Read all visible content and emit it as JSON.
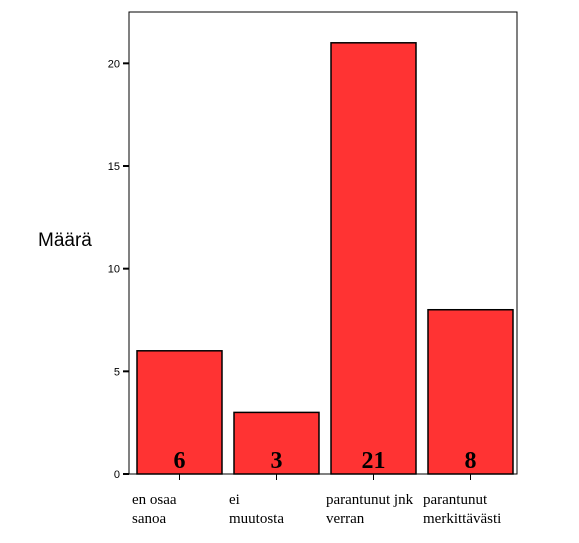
{
  "chart_data": {
    "type": "bar",
    "ylabel": "Määrä",
    "xlabel": "",
    "title": "",
    "categories": [
      [
        "en osaa",
        "sanoa"
      ],
      [
        "ei",
        "muutosta"
      ],
      [
        "parantunut jnk",
        "verran"
      ],
      [
        "parantunut",
        "merkittävästi"
      ]
    ],
    "values": [
      6,
      3,
      21,
      8
    ],
    "data_labels": [
      "6",
      "3",
      "21",
      "8"
    ],
    "ylim": [
      0,
      22.5
    ],
    "yticks": [
      0,
      5,
      10,
      15,
      20
    ],
    "ytick_labels": [
      "0",
      "5",
      "10",
      "15",
      "20"
    ],
    "bar_color": "#ff3333",
    "bar_stroke": "#000000",
    "grid": false,
    "legend": "none"
  }
}
